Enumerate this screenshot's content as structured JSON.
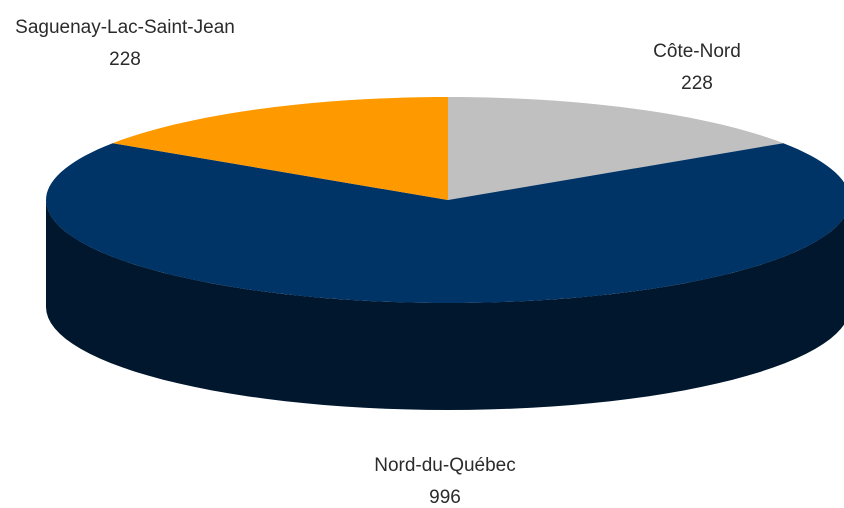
{
  "chart_data": {
    "type": "pie3d",
    "categories": [
      "Côte-Nord",
      "Nord-du-Québec",
      "Saguenay-Lac-Saint-Jean"
    ],
    "values": [
      228,
      996,
      228
    ],
    "colors": [
      "#c0c0c0",
      "#003366",
      "#ff9900"
    ]
  }
}
